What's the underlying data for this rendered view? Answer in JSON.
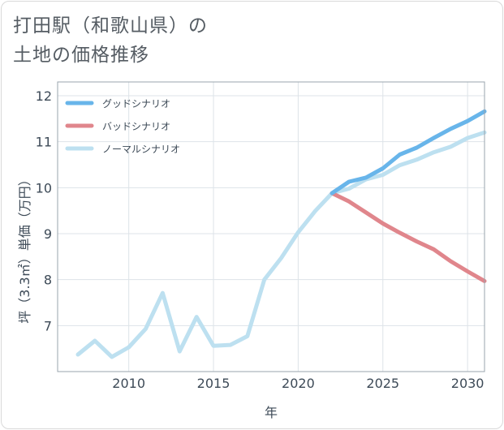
{
  "header": {
    "title_line1": "打田駅（和歌山県）の",
    "title_line2": "土地の価格推移"
  },
  "chart_data": {
    "type": "line",
    "xlabel": "年",
    "ylabel": "坪（3.3㎡）単価（万円）",
    "xlim": [
      2005.8,
      2031.0
    ],
    "ylim": [
      6.0,
      12.3
    ],
    "xticks": [
      2010,
      2015,
      2020,
      2025,
      2030
    ],
    "yticks": [
      7,
      8,
      9,
      10,
      11,
      12
    ],
    "grid": true,
    "legend_position": "top-left",
    "series": [
      {
        "name": "グッドシナリオ",
        "color": "#68b5ea",
        "x": [
          2022,
          2023,
          2024,
          2025,
          2026,
          2027,
          2028,
          2029,
          2030,
          2031
        ],
        "y": [
          9.88,
          10.13,
          10.22,
          10.42,
          10.72,
          10.87,
          11.08,
          11.28,
          11.45,
          11.66
        ]
      },
      {
        "name": "バッドシナリオ",
        "color": "#e0868c",
        "x": [
          2022,
          2023,
          2024,
          2025,
          2026,
          2027,
          2028,
          2029,
          2030,
          2031
        ],
        "y": [
          9.88,
          9.7,
          9.46,
          9.22,
          9.02,
          8.83,
          8.66,
          8.4,
          8.18,
          7.97
        ]
      },
      {
        "name": "ノーマルシナリオ",
        "color": "#bde0f0",
        "x": [
          2007,
          2008,
          2009,
          2010,
          2011,
          2012,
          2013,
          2014,
          2015,
          2016,
          2017,
          2018,
          2019,
          2020,
          2021,
          2022,
          2023,
          2024,
          2025,
          2026,
          2027,
          2028,
          2029,
          2030,
          2031
        ],
        "y": [
          6.37,
          6.67,
          6.32,
          6.53,
          6.93,
          7.71,
          6.44,
          7.19,
          6.56,
          6.58,
          6.77,
          8.0,
          8.47,
          9.03,
          9.49,
          9.88,
          9.98,
          10.18,
          10.28,
          10.49,
          10.61,
          10.77,
          10.89,
          11.08,
          11.2
        ]
      }
    ]
  }
}
